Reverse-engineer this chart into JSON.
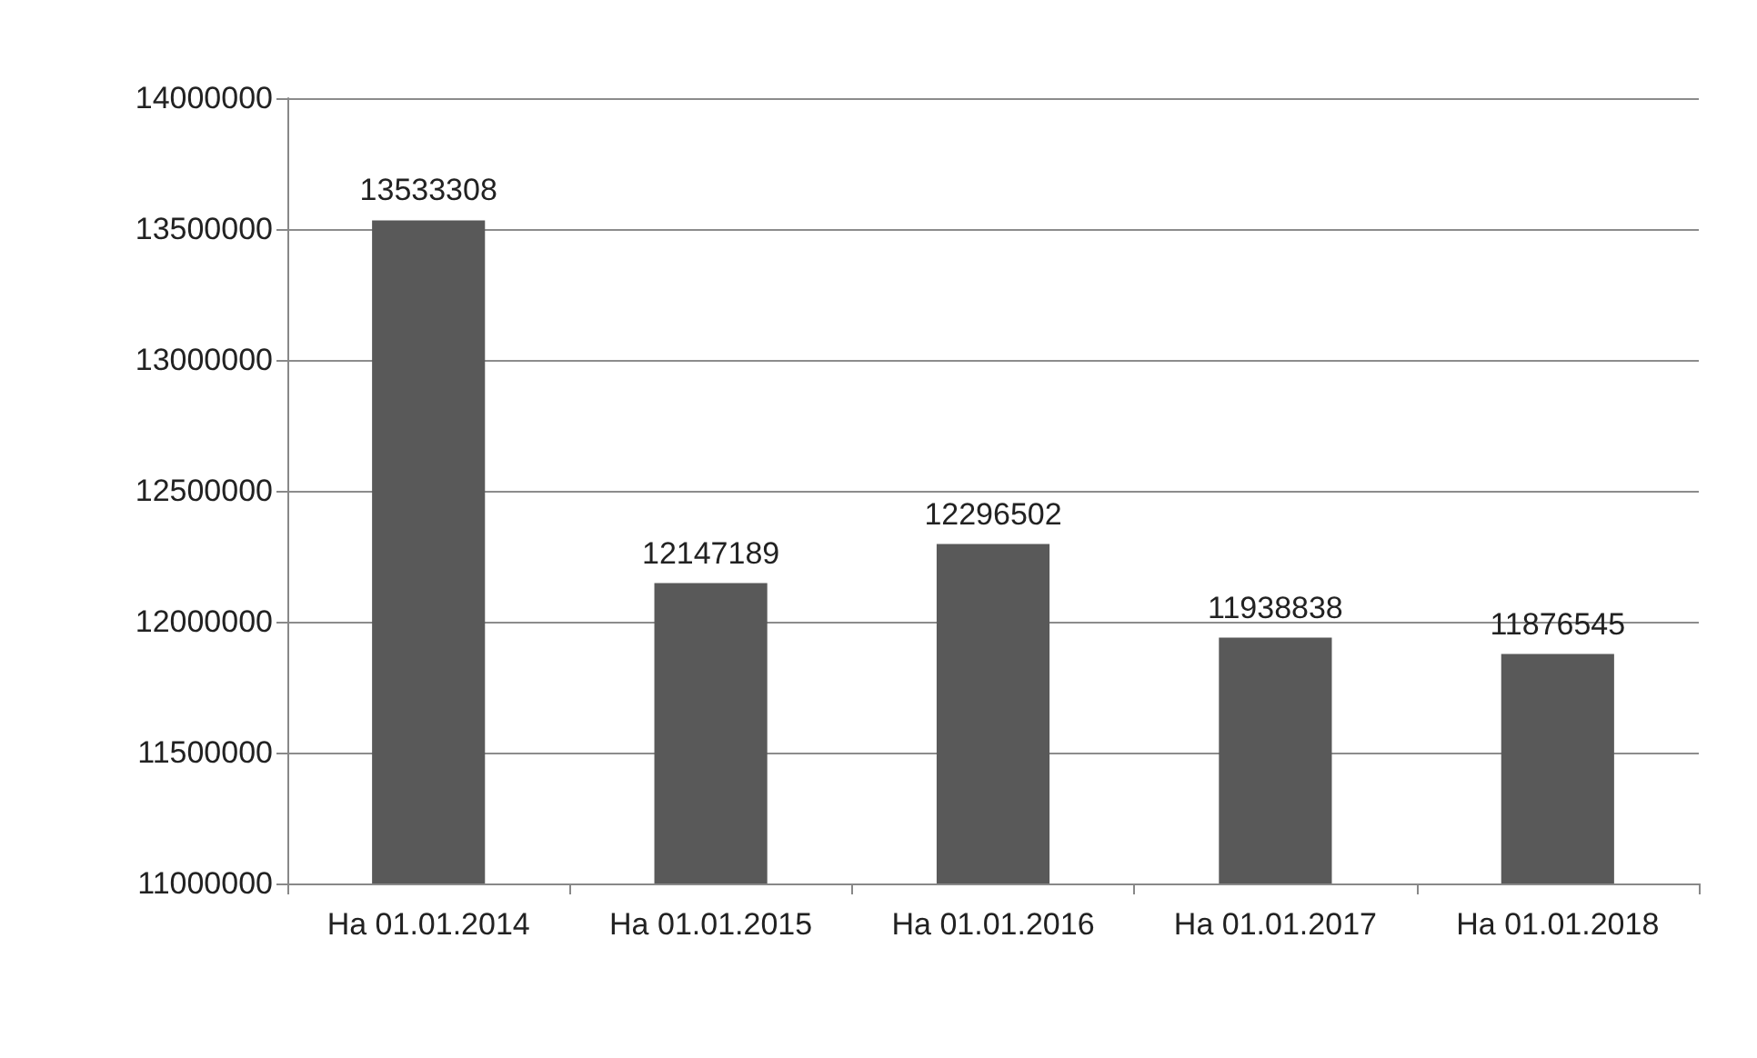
{
  "chart_data": {
    "type": "bar",
    "categories": [
      "На 01.01.2014",
      "На 01.01.2015",
      "На 01.01.2016",
      "На 01.01.2017",
      "На 01.01.2018"
    ],
    "values": [
      13533308,
      12147189,
      12296502,
      11938838,
      11876545
    ],
    "color": "#595959",
    "ylim": [
      11000000,
      14000000
    ],
    "yticks": [
      11000000,
      11500000,
      12000000,
      12500000,
      13000000,
      13500000,
      14000000
    ],
    "grid": "y",
    "data_labels": true
  }
}
